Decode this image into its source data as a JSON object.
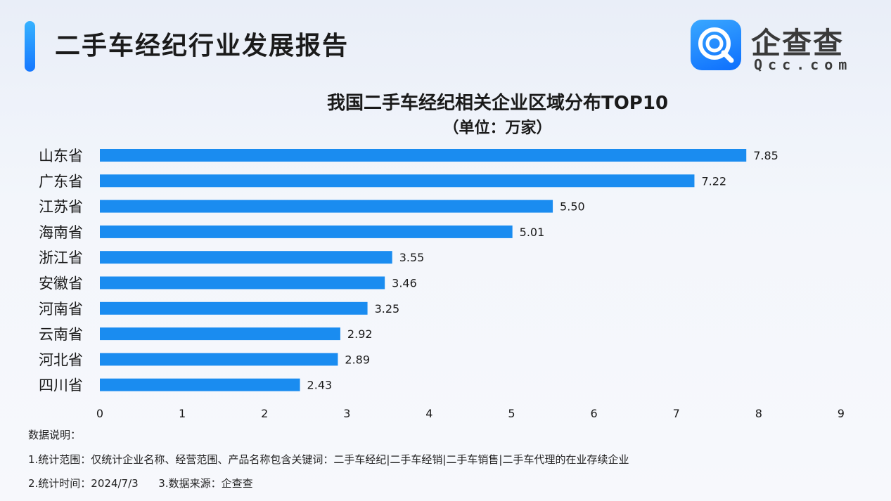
{
  "header": {
    "title": "二手车经纪行业发展报告",
    "logo_text": "企查查",
    "logo_sub": "Qcc.com",
    "logo_icon": "qcc-logo-icon"
  },
  "colors": {
    "bar": "#1a8cf0",
    "accent": "#1677ff"
  },
  "chart_data": {
    "type": "bar",
    "orientation": "horizontal",
    "title": "我国二手车经纪相关企业区域分布TOP10",
    "subtitle": "（单位：万家）",
    "categories": [
      "山东省",
      "广东省",
      "江苏省",
      "海南省",
      "浙江省",
      "安徽省",
      "河南省",
      "云南省",
      "河北省",
      "四川省"
    ],
    "values": [
      7.85,
      7.22,
      5.5,
      5.01,
      3.55,
      3.46,
      3.25,
      2.92,
      2.89,
      2.43
    ],
    "value_labels": [
      "7.85",
      "7.22",
      "5.50",
      "5.01",
      "3.55",
      "3.46",
      "3.25",
      "2.92",
      "2.89",
      "2.43"
    ],
    "xlim": [
      0,
      9
    ],
    "xticks": [
      "0",
      "1",
      "2",
      "3",
      "4",
      "5",
      "6",
      "7",
      "8",
      "9"
    ],
    "grid": false,
    "legend": "none"
  },
  "notes": {
    "heading": "数据说明：",
    "line1": "1.统计范围：仅统计企业名称、经营范围、产品名称包含关键词：二手车经纪|二手车经销|二手车销售|二手车代理的在业存续企业",
    "line2": "2.统计时间：2024/7/3      3.数据来源：企查查"
  }
}
